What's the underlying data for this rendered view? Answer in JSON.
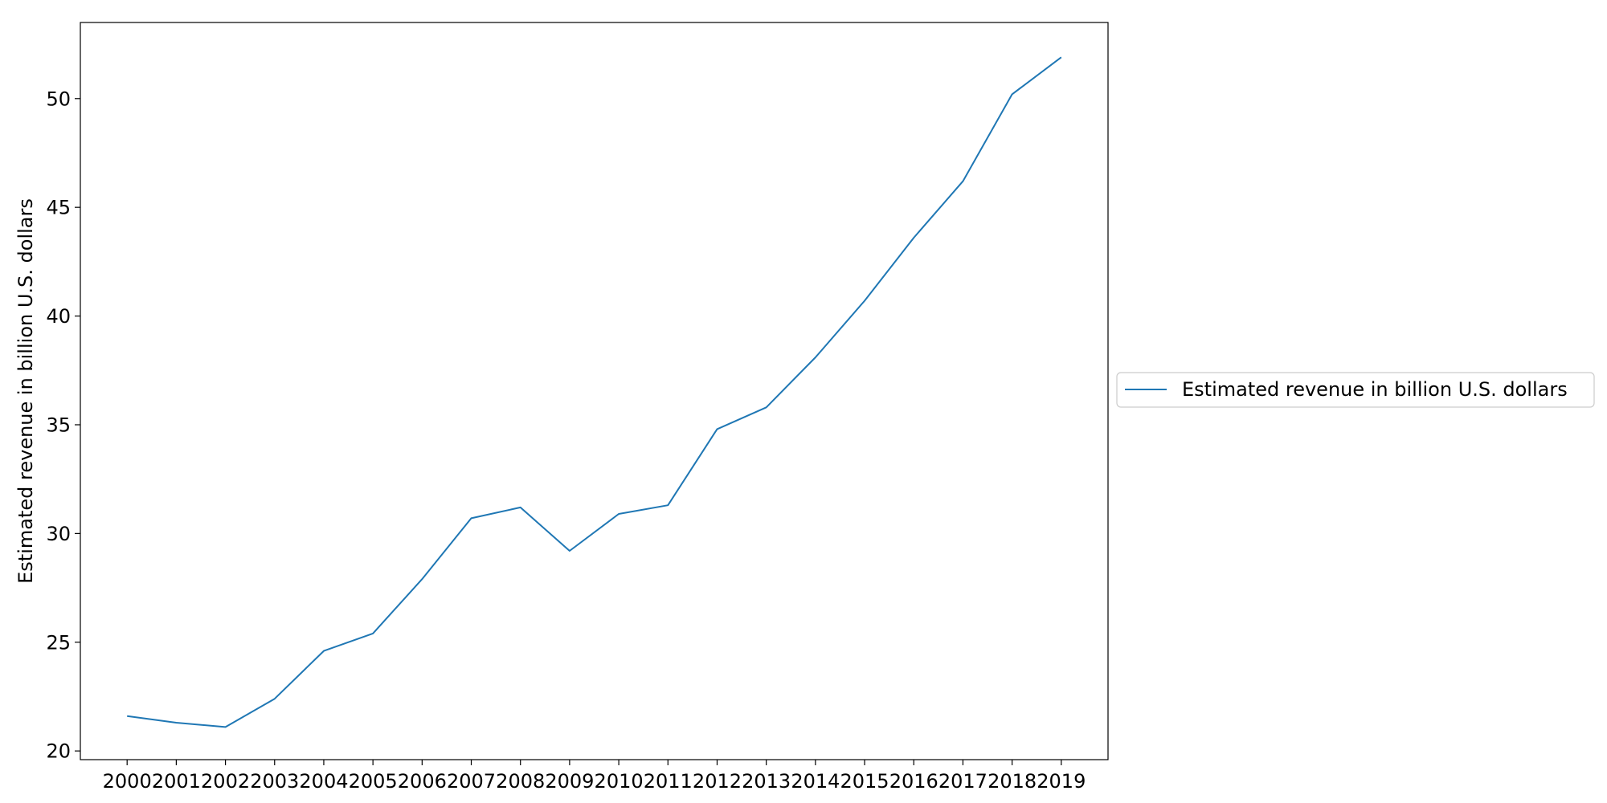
{
  "chart_data": {
    "type": "line",
    "title": "",
    "xlabel": "",
    "ylabel": "Estimated revenue in billion U.S. dollars",
    "x": [
      "2000",
      "2001",
      "2002",
      "2003",
      "2004",
      "2005",
      "2006",
      "2007",
      "2008",
      "2009",
      "2010",
      "2011",
      "2012",
      "2013",
      "2014",
      "2015",
      "2016",
      "2017",
      "2018",
      "2019"
    ],
    "series": [
      {
        "name": "Estimated revenue in billion U.S. dollars",
        "values": [
          21.6,
          21.3,
          21.1,
          22.4,
          24.6,
          25.4,
          27.9,
          30.7,
          31.2,
          29.2,
          30.9,
          31.3,
          34.8,
          35.8,
          38.1,
          40.7,
          43.6,
          46.2,
          50.2,
          51.9
        ],
        "color": "#1f77b4"
      }
    ],
    "ylim": [
      19.6,
      53.5
    ],
    "yticks": [
      20,
      25,
      30,
      35,
      40,
      45,
      50
    ],
    "grid": false,
    "legend_position": "center-right outside plot"
  }
}
